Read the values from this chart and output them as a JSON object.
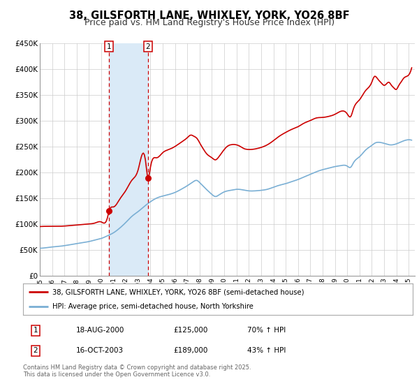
{
  "title": "38, GILSFORTH LANE, WHIXLEY, YORK, YO26 8BF",
  "subtitle": "Price paid vs. HM Land Registry's House Price Index (HPI)",
  "xlim": [
    1995.0,
    2025.5
  ],
  "ylim": [
    0,
    450000
  ],
  "yticks": [
    0,
    50000,
    100000,
    150000,
    200000,
    250000,
    300000,
    350000,
    400000,
    450000
  ],
  "ytick_labels": [
    "£0",
    "£50K",
    "£100K",
    "£150K",
    "£200K",
    "£250K",
    "£300K",
    "£350K",
    "£400K",
    "£450K"
  ],
  "xtick_years": [
    1995,
    1996,
    1997,
    1998,
    1999,
    2000,
    2001,
    2002,
    2003,
    2004,
    2005,
    2006,
    2007,
    2008,
    2009,
    2010,
    2011,
    2012,
    2013,
    2014,
    2015,
    2016,
    2017,
    2018,
    2019,
    2020,
    2021,
    2022,
    2023,
    2024,
    2025
  ],
  "sale1_x": 2000.63,
  "sale1_y": 125000,
  "sale2_x": 2003.79,
  "sale2_y": 189000,
  "vline1_x": 2000.63,
  "vline2_x": 2003.79,
  "shade_color": "#daeaf7",
  "vline_color": "#cc0000",
  "property_line_color": "#cc0000",
  "hpi_line_color": "#7aafd4",
  "dot_color": "#cc0000",
  "legend1_text": "38, GILSFORTH LANE, WHIXLEY, YORK, YO26 8BF (semi-detached house)",
  "legend2_text": "HPI: Average price, semi-detached house, North Yorkshire",
  "table_row1": [
    "1",
    "18-AUG-2000",
    "£125,000",
    "70% ↑ HPI"
  ],
  "table_row2": [
    "2",
    "16-OCT-2003",
    "£189,000",
    "43% ↑ HPI"
  ],
  "footnote": "Contains HM Land Registry data © Crown copyright and database right 2025.\nThis data is licensed under the Open Government Licence v3.0.",
  "background_color": "#ffffff",
  "grid_color": "#cccccc",
  "title_fontsize": 10.5,
  "subtitle_fontsize": 9
}
